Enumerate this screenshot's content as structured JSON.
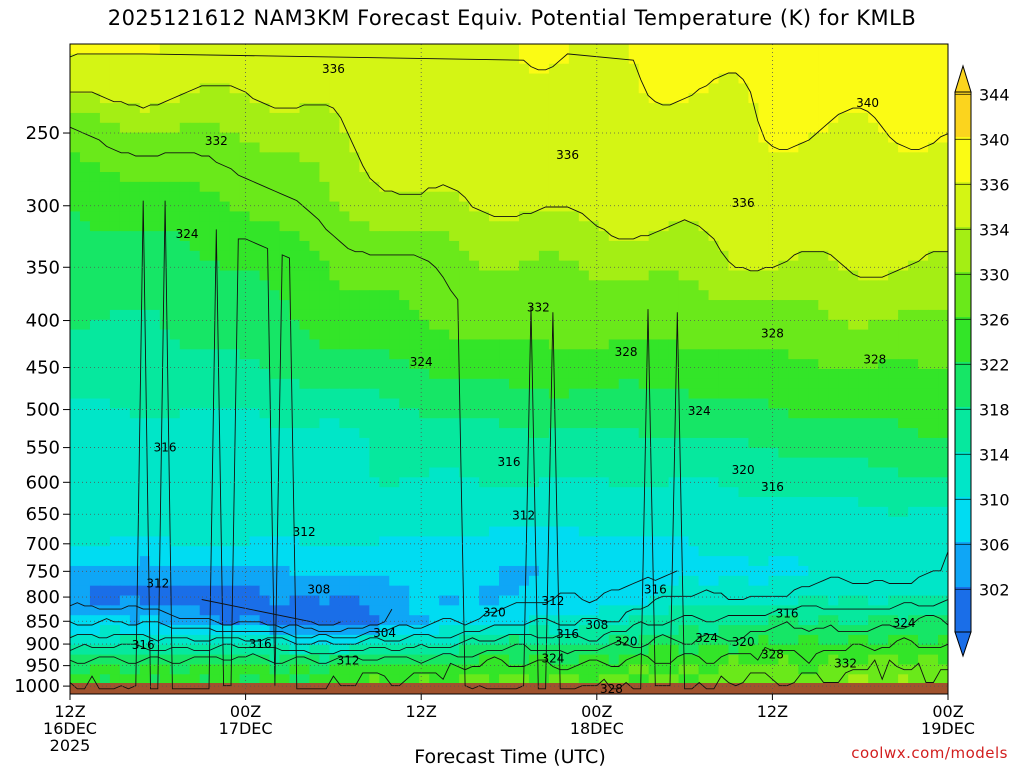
{
  "title": "2025121612 NAM3KM Forecast Equiv. Potential Temperature (K) for KMLB",
  "x_axis_title": "Forecast Time (UTC)",
  "credit": "coolwx.com/models",
  "chart_data": {
    "type": "heatmap",
    "title": "2025121612 NAM3KM Forecast Equiv. Potential Temperature (K) for KMLB",
    "xlabel": "Forecast Time (UTC)",
    "ylabel": "",
    "x_range_hours": [
      0,
      60
    ],
    "y_range_hpa": [
      1020,
      200
    ],
    "y_scale": "log",
    "y_ticks": [
      250,
      300,
      350,
      400,
      450,
      500,
      550,
      600,
      650,
      700,
      750,
      800,
      850,
      900,
      950,
      1000
    ],
    "x_ticks": [
      {
        "hour": 0,
        "lines": [
          "12Z",
          "16DEC",
          "2025"
        ]
      },
      {
        "hour": 12,
        "lines": [
          "00Z",
          "17DEC"
        ]
      },
      {
        "hour": 24,
        "lines": [
          "12Z"
        ]
      },
      {
        "hour": 36,
        "lines": [
          "00Z",
          "18DEC"
        ]
      },
      {
        "hour": 48,
        "lines": [
          "12Z"
        ]
      },
      {
        "hour": 60,
        "lines": [
          "00Z",
          "19DEC"
        ]
      }
    ],
    "grid": true,
    "colorbar": {
      "position": "right",
      "labels": [
        302,
        306,
        310,
        314,
        318,
        322,
        326,
        330,
        334,
        336,
        340,
        344
      ],
      "colors": [
        "#1a6ee8",
        "#0fa6f6",
        "#00dcf2",
        "#00e6c8",
        "#06e89e",
        "#16e666",
        "#33e528",
        "#6ae91a",
        "#a4ee14",
        "#d4f514",
        "#fbfb14",
        "#fbd41e"
      ]
    },
    "profile_hpa": [
      1000,
      950,
      900,
      850,
      800,
      750,
      700,
      650,
      600,
      550,
      500,
      450,
      400,
      350,
      300,
      250,
      200
    ],
    "profiles": [
      {
        "hour": 0,
        "values": [
          328,
          325,
          318,
          312,
          306,
          309,
          314,
          316,
          316,
          316,
          318,
          320,
          322,
          324,
          326,
          332,
          342
        ]
      },
      {
        "hour": 6,
        "values": [
          328,
          326,
          318,
          310,
          304,
          308,
          314,
          316,
          316,
          316,
          318,
          320,
          322,
          324,
          328,
          334,
          340
        ]
      },
      {
        "hour": 12,
        "values": [
          327,
          326,
          318,
          306,
          305,
          309,
          314,
          316,
          317,
          316,
          318,
          322,
          324,
          326,
          330,
          334,
          338
        ]
      },
      {
        "hour": 18,
        "values": [
          328,
          326,
          315,
          302,
          306,
          310,
          314,
          316,
          317,
          317,
          319,
          324,
          328,
          330,
          334,
          336,
          338
        ]
      },
      {
        "hour": 24,
        "values": [
          330,
          327,
          318,
          310,
          310,
          312,
          314,
          316,
          318,
          319,
          322,
          326,
          330,
          332,
          336,
          338,
          339
        ]
      },
      {
        "hour": 30,
        "values": [
          332,
          328,
          322,
          314,
          310,
          310,
          312,
          315,
          318,
          320,
          324,
          328,
          332,
          334,
          336,
          338,
          340
        ]
      },
      {
        "hour": 36,
        "values": [
          332,
          328,
          322,
          316,
          312,
          310,
          313,
          316,
          318,
          320,
          324,
          328,
          332,
          334,
          337,
          339,
          340
        ]
      },
      {
        "hour": 42,
        "values": [
          332,
          330,
          325,
          320,
          316,
          312,
          314,
          316,
          318,
          321,
          324,
          328,
          332,
          335,
          337,
          339,
          341
        ]
      },
      {
        "hour": 48,
        "values": [
          333,
          330,
          326,
          322,
          316,
          314,
          315,
          316,
          319,
          322,
          326,
          329,
          333,
          336,
          338,
          340,
          341
        ]
      },
      {
        "hour": 54,
        "values": [
          334,
          331,
          327,
          322,
          318,
          314,
          316,
          317,
          320,
          324,
          327,
          330,
          334,
          336,
          338,
          340,
          342
        ]
      },
      {
        "hour": 60,
        "values": [
          334,
          332,
          327,
          324,
          318,
          316,
          316,
          318,
          321,
          325,
          327,
          330,
          334,
          336,
          338,
          340,
          342
        ]
      }
    ],
    "contour_labels": [
      {
        "text": "336",
        "hour": 18.0,
        "hpa": 213
      },
      {
        "text": "340",
        "hour": 54.5,
        "hpa": 232
      },
      {
        "text": "332",
        "hour": 10.0,
        "hpa": 255
      },
      {
        "text": "336",
        "hour": 34.0,
        "hpa": 264
      },
      {
        "text": "336",
        "hour": 46.0,
        "hpa": 298
      },
      {
        "text": "324",
        "hour": 8.0,
        "hpa": 322
      },
      {
        "text": "332",
        "hour": 32.0,
        "hpa": 387
      },
      {
        "text": "328",
        "hour": 48.0,
        "hpa": 413
      },
      {
        "text": "328",
        "hour": 38.0,
        "hpa": 433
      },
      {
        "text": "324",
        "hour": 24.0,
        "hpa": 444
      },
      {
        "text": "328",
        "hour": 55.0,
        "hpa": 441
      },
      {
        "text": "324",
        "hour": 43.0,
        "hpa": 502
      },
      {
        "text": "316",
        "hour": 6.5,
        "hpa": 550
      },
      {
        "text": "316",
        "hour": 30.0,
        "hpa": 570
      },
      {
        "text": "320",
        "hour": 46.0,
        "hpa": 582
      },
      {
        "text": "316",
        "hour": 48.0,
        "hpa": 607
      },
      {
        "text": "312",
        "hour": 31.0,
        "hpa": 652
      },
      {
        "text": "312",
        "hour": 16.0,
        "hpa": 680
      },
      {
        "text": "312",
        "hour": 6.0,
        "hpa": 773
      },
      {
        "text": "308",
        "hour": 17.0,
        "hpa": 785
      },
      {
        "text": "316",
        "hour": 40.0,
        "hpa": 785
      },
      {
        "text": "312",
        "hour": 33.0,
        "hpa": 808
      },
      {
        "text": "320",
        "hour": 29.0,
        "hpa": 832
      },
      {
        "text": "316",
        "hour": 49.0,
        "hpa": 834
      },
      {
        "text": "308",
        "hour": 36.0,
        "hpa": 858
      },
      {
        "text": "324",
        "hour": 57.0,
        "hpa": 854
      },
      {
        "text": "304",
        "hour": 21.5,
        "hpa": 875
      },
      {
        "text": "316",
        "hour": 34.0,
        "hpa": 878
      },
      {
        "text": "320",
        "hour": 38.0,
        "hpa": 894
      },
      {
        "text": "324",
        "hour": 43.5,
        "hpa": 886
      },
      {
        "text": "320",
        "hour": 46.0,
        "hpa": 895
      },
      {
        "text": "316",
        "hour": 5.0,
        "hpa": 902
      },
      {
        "text": "316",
        "hour": 13.0,
        "hpa": 900
      },
      {
        "text": "328",
        "hour": 48.0,
        "hpa": 924
      },
      {
        "text": "312",
        "hour": 19.0,
        "hpa": 938
      },
      {
        "text": "324",
        "hour": 33.0,
        "hpa": 933
      },
      {
        "text": "332",
        "hour": 53.0,
        "hpa": 945
      },
      {
        "text": "328",
        "hour": 37.0,
        "hpa": 1007
      }
    ]
  }
}
